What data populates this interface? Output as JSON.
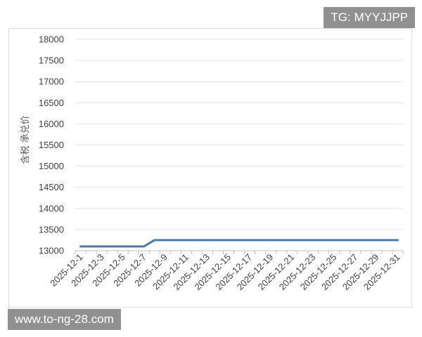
{
  "watermarks": {
    "top_right": "TG: MYYJJPP",
    "bottom_left": "www.to-ng-28.com"
  },
  "chart_data": {
    "type": "line",
    "ylabel": "含税 承兑价",
    "xlabel": "",
    "title": "",
    "ylim": [
      13000,
      18000
    ],
    "yticks": [
      13000,
      13500,
      14000,
      14500,
      15000,
      15500,
      16000,
      16500,
      17000,
      17500,
      18000
    ],
    "grid": true,
    "line_color": "#4a78a8",
    "x": [
      "2025-12-1",
      "2025-12-2",
      "2025-12-3",
      "2025-12-4",
      "2025-12-5",
      "2025-12-6",
      "2025-12-7",
      "2025-12-8",
      "2025-12-9",
      "2025-12-10",
      "2025-12-11",
      "2025-12-12",
      "2025-12-13",
      "2025-12-14",
      "2025-12-15",
      "2025-12-16",
      "2025-12-17",
      "2025-12-18",
      "2025-12-19",
      "2025-12-20",
      "2025-12-21",
      "2025-12-22",
      "2025-12-23",
      "2025-12-24",
      "2025-12-25",
      "2025-12-26",
      "2025-12-27",
      "2025-12-28",
      "2025-12-29",
      "2025-12-30",
      "2025-12-31"
    ],
    "xtick_labels": [
      "2025-12-1",
      "2025-12-3",
      "2025-12-5",
      "2025-12-7",
      "2025-12-9",
      "2025-12-11",
      "2025-12-13",
      "2025-12-15",
      "2025-12-17",
      "2025-12-19",
      "2025-12-21",
      "2025-12-23",
      "2025-12-25",
      "2025-12-27",
      "2025-12-29",
      "2025-12-31"
    ],
    "series": [
      {
        "values": [
          13100,
          13100,
          13100,
          13100,
          13100,
          13100,
          13100,
          13250,
          13250,
          13250,
          13250,
          13250,
          13250,
          13250,
          13250,
          13250,
          13250,
          13250,
          13250,
          13250,
          13250,
          13250,
          13250,
          13250,
          13250,
          13250,
          13250,
          13250,
          13250,
          13250,
          13250
        ]
      }
    ]
  }
}
